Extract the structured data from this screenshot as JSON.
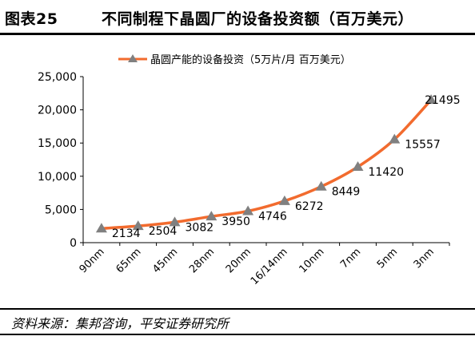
{
  "header": {
    "figure_label": "图表25",
    "title": "不同制程下晶圆厂的设备投资额（百万美元）"
  },
  "footer": {
    "source": "资料来源：集邦咨询，平安证券研究所"
  },
  "chart_data": {
    "type": "line",
    "title": "",
    "xlabel": "",
    "ylabel": "",
    "categories": [
      "90nm",
      "65nm",
      "45nm",
      "28nm",
      "20nm",
      "16/14nm",
      "10nm",
      "7nm",
      "5nm",
      "3nm"
    ],
    "series": [
      {
        "name": "晶圆产能的设备投资（5万片/月 百万美元）",
        "values": [
          2134,
          2504,
          3082,
          3950,
          4746,
          6272,
          8449,
          11420,
          15557,
          21495
        ],
        "data_labels": [
          "2134",
          "2504",
          "3082",
          "3950",
          "4746",
          "6272",
          "8449",
          "11420",
          "15557",
          "21495"
        ],
        "line_color": "#F26B2E",
        "marker_color": "#808080",
        "marker": "triangle"
      }
    ],
    "ylim": [
      0,
      25000
    ],
    "yticks": [
      0,
      5000,
      10000,
      15000,
      20000,
      25000
    ],
    "ytick_labels": [
      "0",
      "5,000",
      "10,000",
      "15,000",
      "20,000",
      "25,000"
    ],
    "grid": false,
    "legend_position": "top"
  }
}
